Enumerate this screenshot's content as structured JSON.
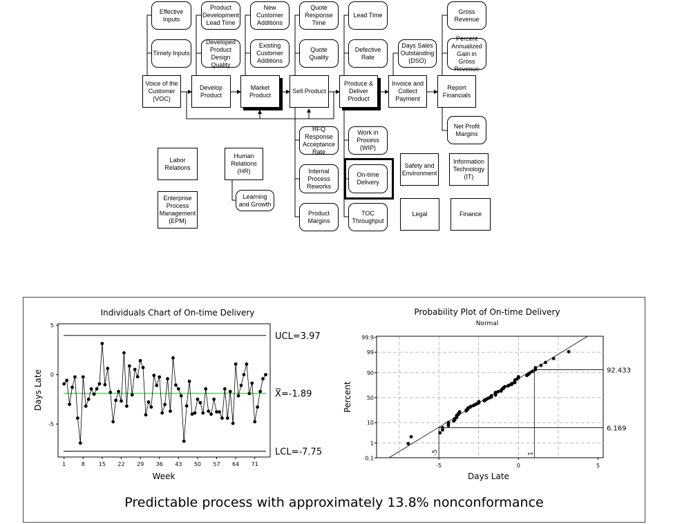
{
  "diagram": {
    "nodes": [
      {
        "id": "effective-inputs",
        "label": "Effective Inputs"
      },
      {
        "id": "timely-inputs",
        "label": "Timely Inputs"
      },
      {
        "id": "product-development-lead-time",
        "label": "Product Development Lead Time"
      },
      {
        "id": "developed-product-design-quality",
        "label": "Developed Product Design Quality"
      },
      {
        "id": "new-customer-additions",
        "label": "New Customer Additions"
      },
      {
        "id": "existing-customer-additions",
        "label": "Existing Customer Additions"
      },
      {
        "id": "quote-response-time",
        "label": "Quote Response Time"
      },
      {
        "id": "quote-quality",
        "label": "Quote Quality"
      },
      {
        "id": "lead-time",
        "label": "Lead Time"
      },
      {
        "id": "defective-rate",
        "label": "Defective Rate"
      },
      {
        "id": "days-sales-outstanding",
        "label": "Days Sales Outstanding (DSO)"
      },
      {
        "id": "gross-revenue",
        "label": "Gross Revenue"
      },
      {
        "id": "percent-annualized-gain",
        "label": "Percent Annualized Gain in Gross Revenue"
      },
      {
        "id": "voice-of-customer",
        "label": "Voice of the Customer (VOC)"
      },
      {
        "id": "develop-product",
        "label": "Develop Product"
      },
      {
        "id": "market-product",
        "label": "Market Product"
      },
      {
        "id": "sell-product",
        "label": "Sell Product"
      },
      {
        "id": "produce-deliver-product",
        "label": "Produce & Deliver Product"
      },
      {
        "id": "invoice-collect-payment",
        "label": "Invoice and Collect Payment"
      },
      {
        "id": "report-financials",
        "label": "Report Financials"
      },
      {
        "id": "net-profit-margins",
        "label": "Net Profit Margins"
      },
      {
        "id": "rfq-response-acceptance-rate",
        "label": "RFQ Response Acceptance Rate"
      },
      {
        "id": "internal-process-reworks",
        "label": "Internal Process Reworks"
      },
      {
        "id": "product-margins",
        "label": "Product Margins"
      },
      {
        "id": "work-in-process",
        "label": "Work in Process (WIP)"
      },
      {
        "id": "on-time-delivery",
        "label": "On-time Delivery"
      },
      {
        "id": "toc-throughput",
        "label": "TOC Throughput"
      },
      {
        "id": "safety-environment",
        "label": "Safety and Environment"
      },
      {
        "id": "information-technology",
        "label": "Information Technology (IT)"
      },
      {
        "id": "legal",
        "label": "Legal"
      },
      {
        "id": "finance",
        "label": "Finance"
      },
      {
        "id": "labor-relations",
        "label": "Labor Relations"
      },
      {
        "id": "enterprise-process-management",
        "label": "Enterprise Process Management (EPM)"
      },
      {
        "id": "human-relations",
        "label": "Human Relations (HR)"
      },
      {
        "id": "learning-growth",
        "label": "Learning and Growth"
      }
    ]
  },
  "chart_data": [
    {
      "type": "line",
      "title": "Individuals Chart of On-time Delivery",
      "xlabel": "Week",
      "ylabel": "Days Late",
      "xticks": [
        "1",
        "8",
        "15",
        "22",
        "29",
        "36",
        "43",
        "50",
        "57",
        "64",
        "71"
      ],
      "yticks": [
        "5",
        "0",
        "-5"
      ],
      "ylim": [
        -8.3,
        5.2
      ],
      "ucl": 3.97,
      "center": -1.89,
      "lcl": -7.75,
      "ucl_label": "UCL=3.97",
      "center_label": "X̅=-1.89",
      "lcl_label": "LCL=-7.75",
      "center_color": "#33cc33",
      "values": [
        -0.93,
        -0.58,
        -3.0,
        -1.28,
        -0.23,
        -4.4,
        -6.93,
        -0.23,
        -3.19,
        -2.49,
        -1.44,
        -1.98,
        -1.44,
        -0.93,
        3.16,
        -1.02,
        0.63,
        -1.79,
        -4.77,
        -2.6,
        -1.7,
        -2.67,
        2.21,
        -3.19,
        0.88,
        -2.05,
        0.53,
        -0.21,
        1.42,
        0.72,
        -4.07,
        -2.77,
        -3.28,
        -0.07,
        -1.09,
        -0.23,
        -3.88,
        -3.02,
        -0.42,
        -3.7,
        1.7,
        -1.05,
        -1.44,
        -2.14,
        -6.74,
        -3.16,
        -0.67,
        -4.0,
        -3.88,
        -2.49,
        -2.84,
        -3.88,
        -1.44,
        -3.7,
        -4.0,
        -2.49,
        -3.77,
        -3.77,
        -4.4,
        -1.44,
        -4.4,
        -1.7,
        -4.93,
        1.07,
        -2.14,
        -1.09,
        0.0,
        1.07,
        -1.91,
        -0.86,
        -4.77,
        -3.28,
        -1.7,
        -0.42,
        0.0
      ]
    },
    {
      "type": "scatter",
      "title": "Probability Plot of On-time Delivery",
      "subtitle": "Normal",
      "xlabel": "Days Late",
      "ylabel": "Percent",
      "xticks": [
        "-5",
        "0",
        "5"
      ],
      "yticks": [
        "0.1",
        "1",
        "10",
        "50",
        "90",
        "99",
        "99.9"
      ],
      "xlim": [
        -8.9,
        5.3
      ],
      "fit": {
        "mean": -1.89,
        "stdev": 2.02
      },
      "reference": [
        {
          "x": -5,
          "x_label": "-5",
          "percent": 6.169,
          "percent_label": "6.169"
        },
        {
          "x": 1,
          "x_label": "1",
          "percent": 92.433,
          "percent_label": "92.433"
        }
      ],
      "note": "points are the Individuals chart values, sorted, plotted at median-rank percentiles"
    }
  ],
  "caption": "Predictable process with approximately 13.8% nonconformance"
}
